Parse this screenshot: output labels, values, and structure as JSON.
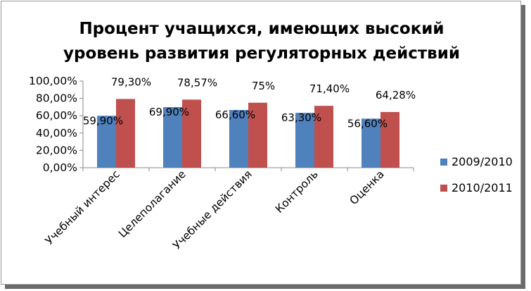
{
  "chart_data": {
    "type": "bar",
    "title_lines": [
      "Процент учащихся,  имеющих высокий",
      "уровень развития  регуляторных действий"
    ],
    "categories": [
      "Учебный интерес",
      "Целеполагание",
      "Учебные действия",
      "Контроль",
      "Оценка"
    ],
    "series": [
      {
        "name": "2009/2010",
        "color": "#4f81bd",
        "values": [
          59.9,
          69.9,
          66.6,
          63.3,
          56.6
        ],
        "data_labels": [
          "59,90%",
          "69,90%",
          "66,60%",
          "63,30%",
          "56,60%"
        ]
      },
      {
        "name": "2010/2011",
        "color": "#c0504d",
        "values": [
          79.3,
          78.57,
          75,
          71.4,
          64.28
        ],
        "data_labels": [
          "79,30%",
          "78,57%",
          "75%",
          "71,40%",
          "64,28%"
        ]
      }
    ],
    "y_ticks": [
      "0,00%",
      "20,00%",
      "40,00%",
      "60,00%",
      "80,00%",
      "100,00%"
    ],
    "ylim": [
      0,
      100
    ],
    "grid": false,
    "legend_position": "right"
  }
}
